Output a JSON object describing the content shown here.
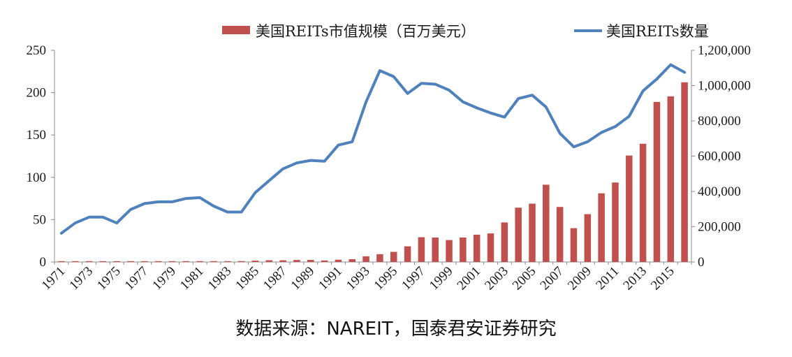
{
  "chart_data": {
    "type": "bar+line",
    "title": "",
    "categories": [
      1971,
      1972,
      1973,
      1974,
      1975,
      1976,
      1977,
      1978,
      1979,
      1980,
      1981,
      1982,
      1983,
      1984,
      1985,
      1986,
      1987,
      1988,
      1989,
      1990,
      1991,
      1992,
      1993,
      1994,
      1995,
      1996,
      1997,
      1998,
      1999,
      2000,
      2001,
      2002,
      2003,
      2004,
      2005,
      2006,
      2007,
      2008,
      2009,
      2010,
      2011,
      2012,
      2013,
      2014,
      2015,
      2016
    ],
    "x_tick_labels": [
      "1971",
      "1973",
      "1975",
      "1977",
      "1979",
      "1981",
      "1983",
      "1985",
      "1987",
      "1989",
      "1991",
      "1993",
      "1995",
      "1997",
      "1999",
      "2001",
      "2003",
      "2005",
      "2007",
      "2009",
      "2011",
      "2013",
      "2015"
    ],
    "series": [
      {
        "name": "美国REITs市值规模（百万美元）",
        "type": "bar",
        "axis": "right",
        "color": "#c0504d",
        "values": [
          1500,
          1500,
          1400,
          700,
          900,
          1300,
          1500,
          1400,
          1800,
          2300,
          2400,
          3000,
          4300,
          5100,
          7700,
          9900,
          9700,
          11400,
          11700,
          8700,
          12900,
          15900,
          32200,
          44300,
          57500,
          88800,
          140500,
          138700,
          124300,
          138700,
          154900,
          161900,
          224200,
          307900,
          330700,
          438100,
          312000,
          191700,
          271200,
          389300,
          450500,
          603400,
          670300,
          907400,
          938900,
          1018700
        ]
      },
      {
        "name": "美国REITs数量",
        "type": "line",
        "axis": "left",
        "color": "#4f81bd",
        "values": [
          34,
          46,
          53,
          53,
          46,
          62,
          69,
          71,
          71,
          75,
          76,
          66,
          59,
          59,
          82,
          96,
          110,
          117,
          120,
          119,
          138,
          142,
          189,
          226,
          219,
          199,
          211,
          210,
          203,
          189,
          182,
          176,
          171,
          193,
          197,
          183,
          152,
          136,
          142,
          153,
          160,
          172,
          202,
          216,
          233,
          224
        ]
      }
    ],
    "y_left": {
      "min": 0,
      "max": 250,
      "ticks": [
        "0",
        "50",
        "100",
        "150",
        "200",
        "250"
      ]
    },
    "y_right": {
      "min": 0,
      "max": 1200000,
      "ticks": [
        "0",
        "200,000",
        "400,000",
        "600,000",
        "800,000",
        "1,000,000",
        "1,200,000"
      ]
    },
    "grid": false,
    "legend_position": "top"
  },
  "footer": {
    "source_text": "数据来源：NAREIT，国泰君安证券研究"
  }
}
